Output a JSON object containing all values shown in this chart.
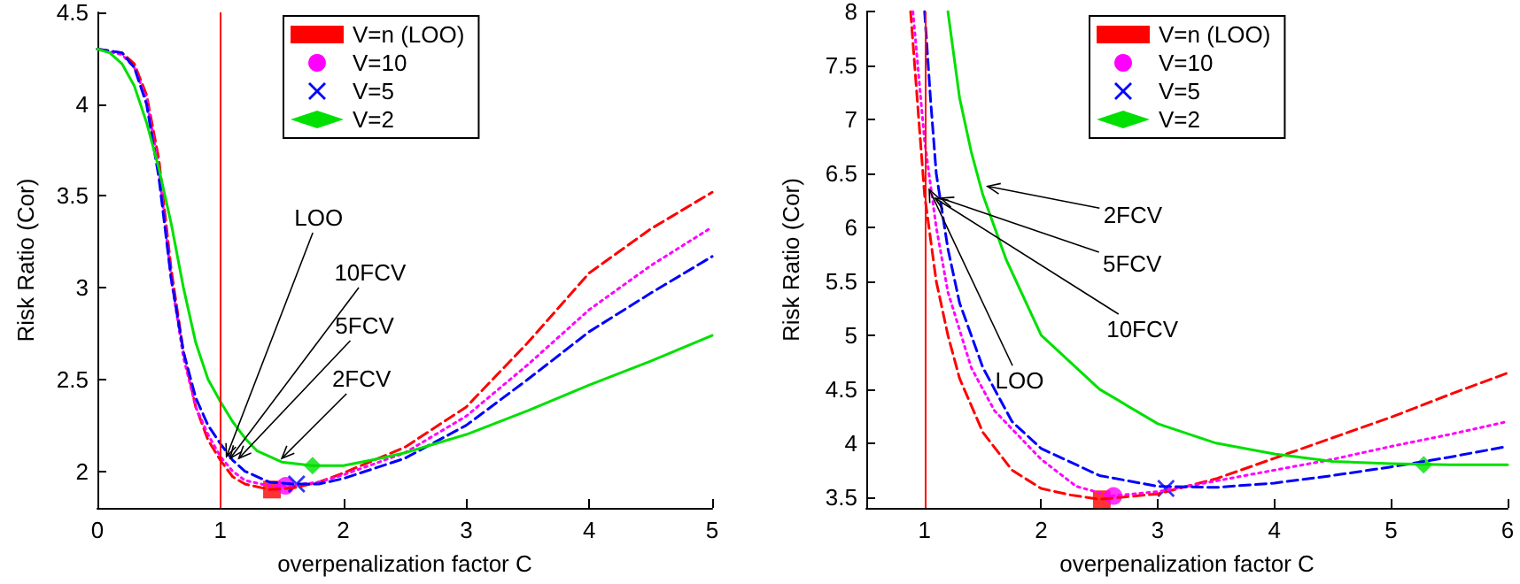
{
  "chart_data": [
    {
      "type": "line",
      "xlabel": "overpenalization factor C",
      "ylabel": "Risk Ratio (Cor)",
      "xlim": [
        0,
        5
      ],
      "xticks": [
        0,
        1,
        2,
        3,
        4,
        5
      ],
      "ylim": [
        1.8,
        4.5
      ],
      "yticks": [
        2,
        2.5,
        3,
        3.5,
        4,
        4.5
      ],
      "grid": false,
      "legend": "top",
      "ref_lines": [
        {
          "axis": "x",
          "value": 1,
          "color": "#ff0000"
        }
      ],
      "annotations": [
        {
          "text": "LOO",
          "x": 1.05,
          "y": 2.08
        },
        {
          "text": "10FCV",
          "x": 1.08,
          "y": 2.07
        },
        {
          "text": "5FCV",
          "x": 1.15,
          "y": 2.07
        },
        {
          "text": "2FCV",
          "x": 1.5,
          "y": 2.07
        }
      ],
      "series": [
        {
          "name": "V=n (LOO)",
          "color": "#ff0000",
          "line_style": "dashed",
          "x": [
            0,
            0.2,
            0.3,
            0.4,
            0.5,
            0.6,
            0.7,
            0.8,
            0.9,
            1,
            1.1,
            1.2,
            1.4,
            1.6,
            1.8,
            2,
            2.5,
            3,
            3.5,
            4,
            4.5,
            5
          ],
          "values": [
            4.3,
            4.28,
            4.22,
            4.05,
            3.7,
            3.1,
            2.65,
            2.35,
            2.17,
            2.06,
            1.97,
            1.93,
            1.9,
            1.91,
            1.94,
            1.99,
            2.13,
            2.35,
            2.7,
            3.08,
            3.32,
            3.52
          ]
        },
        {
          "name": "V=10",
          "color": "#ff00ff",
          "line_style": "dotted",
          "x": [
            0,
            0.2,
            0.3,
            0.4,
            0.5,
            0.6,
            0.7,
            0.8,
            0.9,
            1,
            1.1,
            1.2,
            1.4,
            1.53,
            1.8,
            2,
            2.5,
            3,
            3.5,
            4,
            4.5,
            5
          ],
          "values": [
            4.3,
            4.27,
            4.2,
            4.03,
            3.65,
            3.05,
            2.62,
            2.35,
            2.2,
            2.08,
            2.0,
            1.95,
            1.92,
            1.92,
            1.94,
            1.98,
            2.1,
            2.3,
            2.58,
            2.88,
            3.12,
            3.33
          ]
        },
        {
          "name": "V=5",
          "color": "#0000ff",
          "line_style": "dashed",
          "x": [
            0,
            0.2,
            0.3,
            0.4,
            0.5,
            0.6,
            0.7,
            0.8,
            0.9,
            1,
            1.1,
            1.2,
            1.4,
            1.6,
            1.8,
            2,
            2.5,
            3,
            3.5,
            4,
            4.5,
            5
          ],
          "values": [
            4.3,
            4.28,
            4.2,
            4.0,
            3.6,
            3.05,
            2.65,
            2.4,
            2.25,
            2.15,
            2.06,
            2.0,
            1.94,
            1.93,
            1.93,
            1.96,
            2.07,
            2.25,
            2.5,
            2.76,
            2.97,
            3.17
          ]
        },
        {
          "name": "V=2",
          "color": "#00e000",
          "line_style": "solid",
          "x": [
            0,
            0.1,
            0.2,
            0.3,
            0.4,
            0.5,
            0.6,
            0.7,
            0.8,
            0.9,
            1,
            1.1,
            1.2,
            1.3,
            1.5,
            1.75,
            2,
            2.3,
            2.5,
            3,
            3.5,
            4,
            4.5,
            5
          ],
          "values": [
            4.3,
            4.28,
            4.22,
            4.1,
            3.9,
            3.65,
            3.35,
            3.0,
            2.7,
            2.5,
            2.38,
            2.27,
            2.18,
            2.11,
            2.05,
            2.03,
            2.03,
            2.07,
            2.1,
            2.2,
            2.33,
            2.47,
            2.6,
            2.74
          ]
        },
        {
          "type": "scatter",
          "color": "#ff0000",
          "marker": "square",
          "x": [
            1.42
          ],
          "values": [
            1.9
          ]
        },
        {
          "type": "scatter",
          "color": "#ff00ff",
          "marker": "circle",
          "x": [
            1.53
          ],
          "values": [
            1.92
          ]
        },
        {
          "type": "scatter",
          "color": "#0000ff",
          "marker": "cross",
          "x": [
            1.62
          ],
          "values": [
            1.93
          ]
        },
        {
          "type": "scatter",
          "color": "#00e000",
          "marker": "diamond",
          "x": [
            1.75
          ],
          "values": [
            2.03
          ]
        }
      ]
    },
    {
      "type": "line",
      "xlabel": "overpenalization factor C",
      "ylabel": "Risk Ratio (Cor)",
      "xlim": [
        0.5,
        6
      ],
      "xticks": [
        1,
        2,
        3,
        4,
        5,
        6
      ],
      "ylim": [
        3.4,
        8
      ],
      "yticks": [
        3.5,
        4,
        4.5,
        5,
        5.5,
        6,
        6.5,
        7,
        7.5,
        8
      ],
      "grid": false,
      "legend": "top right",
      "ref_lines": [
        {
          "axis": "x",
          "value": 1,
          "color": "#ff0000"
        }
      ],
      "annotations": [
        {
          "text": "2FCV",
          "x": 1.54,
          "y": 6.38
        },
        {
          "text": "5FCV",
          "x": 1.14,
          "y": 6.27
        },
        {
          "text": "10FCV",
          "x": 1.09,
          "y": 6.27
        },
        {
          "text": "LOO",
          "x": 1.04,
          "y": 6.35
        }
      ],
      "series": [
        {
          "name": "V=n (LOO)",
          "color": "#ff0000",
          "line_style": "dashed",
          "x": [
            0.88,
            0.95,
            1.0,
            1.1,
            1.2,
            1.3,
            1.5,
            1.75,
            2.0,
            2.25,
            2.5,
            3.0,
            3.5,
            4,
            4.5,
            5,
            5.5,
            6
          ],
          "values": [
            8,
            7,
            6.3,
            5.5,
            5.0,
            4.6,
            4.1,
            3.75,
            3.58,
            3.52,
            3.48,
            3.53,
            3.67,
            3.86,
            4.05,
            4.24,
            4.45,
            4.65
          ]
        },
        {
          "name": "V=10",
          "color": "#ff00ff",
          "line_style": "dotted",
          "x": [
            0.9,
            1.0,
            1.1,
            1.2,
            1.4,
            1.6,
            2,
            2.3,
            2.6,
            3,
            3.5,
            4,
            4.5,
            5,
            5.5,
            6
          ],
          "values": [
            8,
            6.8,
            6.0,
            5.4,
            4.7,
            4.3,
            3.85,
            3.6,
            3.51,
            3.55,
            3.65,
            3.75,
            3.85,
            3.97,
            4.08,
            4.2
          ]
        },
        {
          "name": "V=5",
          "color": "#0000ff",
          "line_style": "dashed",
          "x": [
            1.0,
            1.05,
            1.1,
            1.2,
            1.3,
            1.5,
            1.75,
            2,
            2.5,
            3,
            3.5,
            4,
            4.5,
            5,
            5.5,
            6
          ],
          "values": [
            8,
            7.2,
            6.5,
            5.8,
            5.3,
            4.7,
            4.2,
            3.95,
            3.7,
            3.6,
            3.59,
            3.63,
            3.7,
            3.78,
            3.87,
            3.97
          ]
        },
        {
          "name": "V=2",
          "color": "#00e000",
          "line_style": "solid",
          "x": [
            1.2,
            1.3,
            1.4,
            1.5,
            1.7,
            2,
            2.5,
            3,
            3.5,
            4,
            4.5,
            5,
            5.5,
            6
          ],
          "values": [
            8,
            7.2,
            6.7,
            6.3,
            5.7,
            5.0,
            4.5,
            4.18,
            4.0,
            3.9,
            3.83,
            3.81,
            3.8,
            3.8
          ]
        },
        {
          "type": "scatter",
          "color": "#ff0000",
          "marker": "square",
          "x": [
            2.52
          ],
          "values": [
            3.48
          ]
        },
        {
          "type": "scatter",
          "color": "#ff00ff",
          "marker": "circle",
          "x": [
            2.62
          ],
          "values": [
            3.51
          ]
        },
        {
          "type": "scatter",
          "color": "#0000ff",
          "marker": "cross",
          "x": [
            3.07
          ],
          "values": [
            3.58
          ]
        },
        {
          "type": "scatter",
          "color": "#00e000",
          "marker": "diamond",
          "x": [
            5.28
          ],
          "values": [
            3.8
          ]
        }
      ]
    }
  ]
}
